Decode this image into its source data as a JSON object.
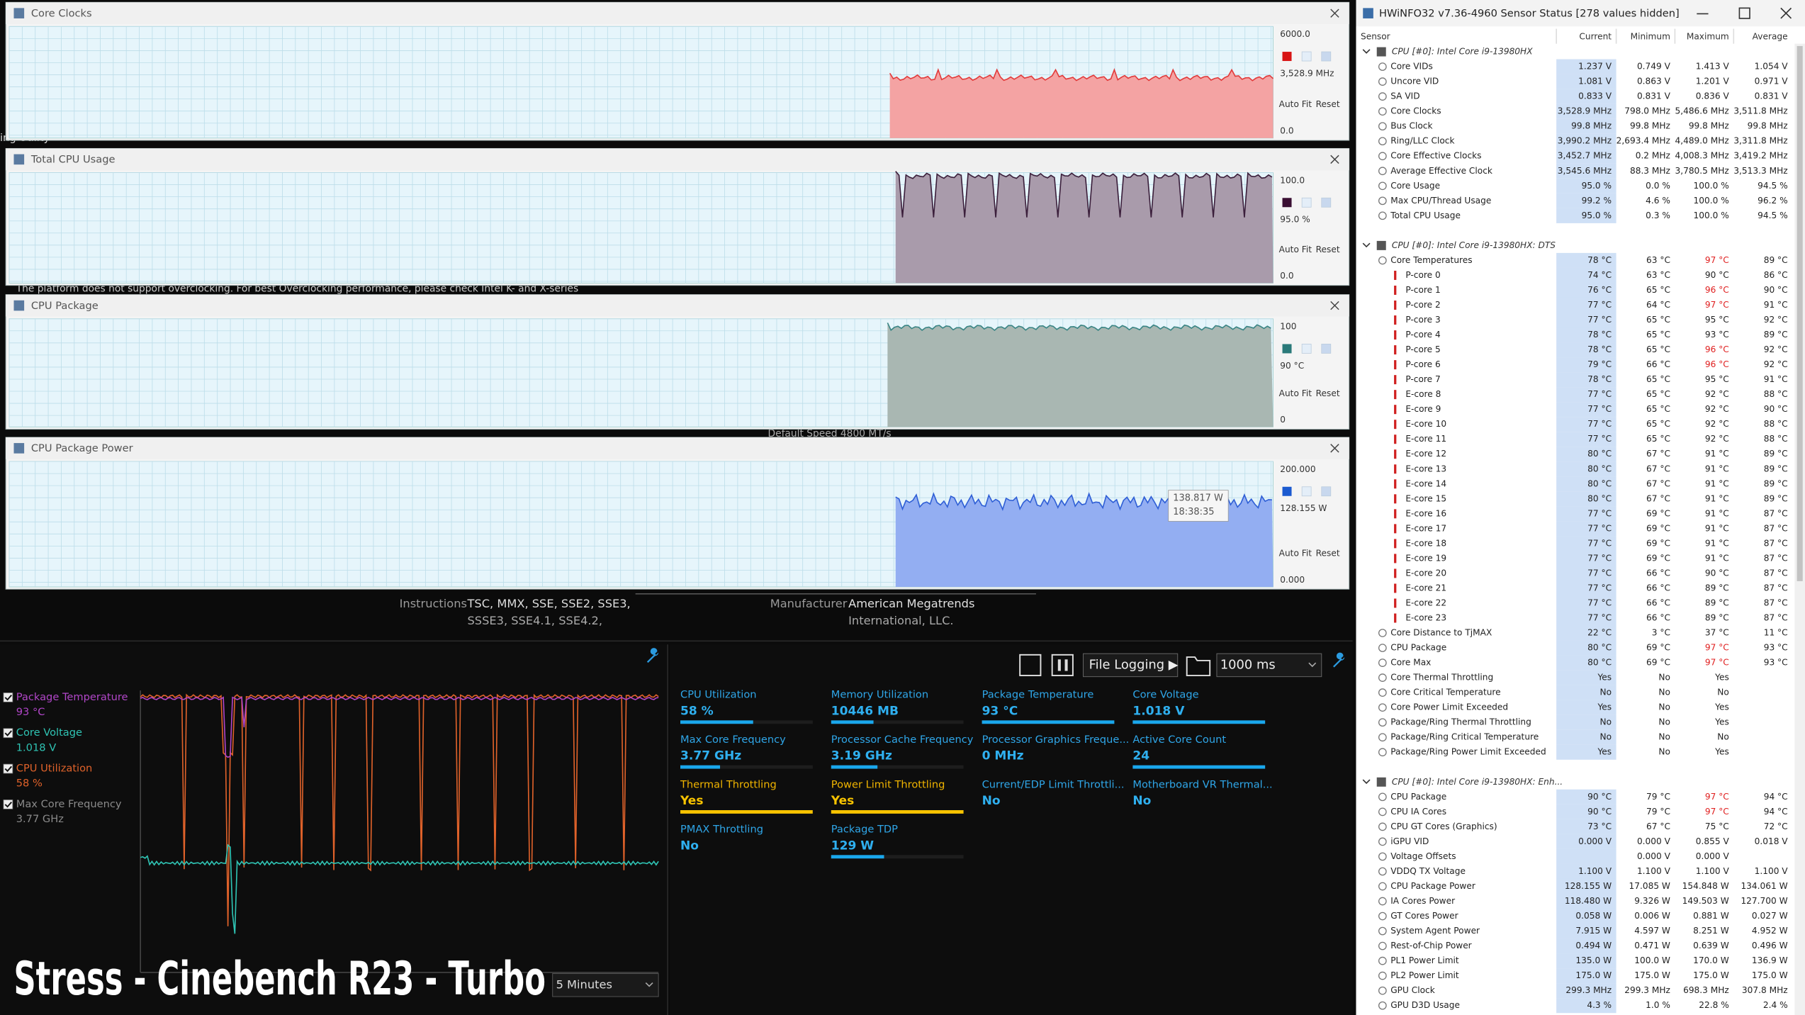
{
  "graph_windows": [
    {
      "title": "Core Clocks",
      "max_label": "6000.0",
      "current_label": "3,528.9 MHz",
      "min_label": "0.0"
    },
    {
      "title": "Total CPU Usage",
      "max_label": "100.0",
      "current_label": "95.0 %",
      "min_label": "0.0"
    },
    {
      "title": "CPU Package",
      "max_label": "100",
      "current_label": "90 °C",
      "min_label": "0"
    },
    {
      "title": "CPU Package Power",
      "max_label": "200.000",
      "current_label": "128.155 W",
      "min_label": "0.000",
      "tooltip": [
        "138.817 W",
        "18:38:35"
      ]
    }
  ],
  "graph_buttons": {
    "auto_fit": "Auto Fit",
    "reset": "Reset"
  },
  "background_texts": [
    "ing Utility",
    "The platform does not support overclocking. For best Overclocking performance, please check Intel K- and X-series",
    "Default Speed 4800 MT/s",
    "Instructions",
    "TSC, MMX, SSE, SSE2, SSE3,",
    "SSSE3, SSE4.1, SSE4.2,",
    "Manufacturer",
    "American Megatrends",
    "International, LLC."
  ],
  "monitor": {
    "legend": [
      {
        "name": "Package Temperature",
        "value": "93 °C",
        "color": "#b146c8"
      },
      {
        "name": "Core Voltage",
        "value": "1.018 V",
        "color": "#2fc4b4"
      },
      {
        "name": "CPU Utilization",
        "value": "58 %",
        "color": "#e0622a"
      },
      {
        "name": "Max Core Frequency",
        "value": "3.77 GHz",
        "color": "#8a8a8a"
      }
    ],
    "overlay": "Stress - Cinebench R23 - Turbo",
    "time_range": "5 Minutes"
  },
  "toolbar": {
    "file_logging": "File Logging ▶",
    "interval": "1000 ms"
  },
  "metrics": [
    {
      "label": "CPU Utilization",
      "value": "58 %"
    },
    {
      "label": "Memory Utilization",
      "value": "10446  MB"
    },
    {
      "label": "Package Temperature",
      "value": "93 °C"
    },
    {
      "label": "Core Voltage",
      "value": "1.018 V"
    },
    {
      "label": "Max Core Frequency",
      "value": "3.77 GHz"
    },
    {
      "label": "Processor Cache Frequency",
      "value": "3.19 GHz"
    },
    {
      "label": "Processor Graphics Freque...",
      "value": "0 MHz"
    },
    {
      "label": "Active Core Count",
      "value": "24"
    },
    {
      "label": "Thermal Throttling",
      "value": "Yes"
    },
    {
      "label": "Power Limit Throttling",
      "value": "Yes"
    },
    {
      "label": "Current/EDP Limit Throttli...",
      "value": "No"
    },
    {
      "label": "Motherboard VR Thermal...",
      "value": "No"
    },
    {
      "label": "PMAX Throttling",
      "value": "No"
    },
    {
      "label": "Package TDP",
      "value": "129 W"
    }
  ],
  "hwinfo": {
    "title": "HWiNFO32 v7.36-4960 Sensor Status [278 values hidden]",
    "columns": [
      "Sensor",
      "Current",
      "Minimum",
      "Maximum",
      "Average"
    ],
    "sections": [
      {
        "title": "CPU [#0]: Intel Core i9-13980HX",
        "rows": [
          [
            "Core VIDs",
            "1.237 V",
            "0.749 V",
            "1.413 V",
            "1.054 V"
          ],
          [
            "Uncore VID",
            "1.081 V",
            "0.863 V",
            "1.201 V",
            "0.971 V"
          ],
          [
            "SA VID",
            "0.833 V",
            "0.831 V",
            "0.836 V",
            "0.831 V"
          ],
          [
            "Core Clocks",
            "3,528.9 MHz",
            "798.0 MHz",
            "5,486.6 MHz",
            "3,511.8 MHz"
          ],
          [
            "Bus Clock",
            "99.8 MHz",
            "99.8 MHz",
            "99.8 MHz",
            "99.8 MHz"
          ],
          [
            "Ring/LLC Clock",
            "3,990.2 MHz",
            "2,693.4 MHz",
            "4,489.0 MHz",
            "3,311.8 MHz"
          ],
          [
            "Core Effective Clocks",
            "3,452.7 MHz",
            "0.2 MHz",
            "4,008.3 MHz",
            "3,419.2 MHz"
          ],
          [
            "Average Effective Clock",
            "3,545.6 MHz",
            "88.3 MHz",
            "3,780.5 MHz",
            "3,513.3 MHz"
          ],
          [
            "Core Usage",
            "95.0 %",
            "0.0 %",
            "100.0 %",
            "94.5 %"
          ],
          [
            "Max CPU/Thread Usage",
            "99.2 %",
            "4.6 %",
            "100.0 %",
            "96.2 %"
          ],
          [
            "Total CPU Usage",
            "95.0 %",
            "0.3 %",
            "100.0 %",
            "94.5 %"
          ]
        ]
      },
      {
        "title": "CPU [#0]: Intel Core i9-13980HX: DTS",
        "rows": [
          [
            "Core Temperatures",
            "78 °C",
            "63 °C",
            "97 °C",
            "89 °C"
          ],
          [
            "P-core 0",
            "74 °C",
            "63 °C",
            "90 °C",
            "86 °C"
          ],
          [
            "P-core 1",
            "76 °C",
            "65 °C",
            "96 °C",
            "90 °C"
          ],
          [
            "P-core 2",
            "77 °C",
            "64 °C",
            "97 °C",
            "91 °C"
          ],
          [
            "P-core 3",
            "77 °C",
            "65 °C",
            "95 °C",
            "92 °C"
          ],
          [
            "P-core 4",
            "78 °C",
            "65 °C",
            "93 °C",
            "89 °C"
          ],
          [
            "P-core 5",
            "78 °C",
            "65 °C",
            "96 °C",
            "92 °C"
          ],
          [
            "P-core 6",
            "79 °C",
            "66 °C",
            "96 °C",
            "92 °C"
          ],
          [
            "P-core 7",
            "78 °C",
            "65 °C",
            "95 °C",
            "91 °C"
          ],
          [
            "E-core 8",
            "77 °C",
            "65 °C",
            "92 °C",
            "88 °C"
          ],
          [
            "E-core 9",
            "77 °C",
            "65 °C",
            "92 °C",
            "90 °C"
          ],
          [
            "E-core 10",
            "77 °C",
            "65 °C",
            "92 °C",
            "88 °C"
          ],
          [
            "E-core 11",
            "77 °C",
            "65 °C",
            "92 °C",
            "88 °C"
          ],
          [
            "E-core 12",
            "80 °C",
            "67 °C",
            "91 °C",
            "89 °C"
          ],
          [
            "E-core 13",
            "80 °C",
            "67 °C",
            "91 °C",
            "89 °C"
          ],
          [
            "E-core 14",
            "80 °C",
            "67 °C",
            "91 °C",
            "89 °C"
          ],
          [
            "E-core 15",
            "80 °C",
            "67 °C",
            "91 °C",
            "89 °C"
          ],
          [
            "E-core 16",
            "77 °C",
            "69 °C",
            "91 °C",
            "87 °C"
          ],
          [
            "E-core 17",
            "77 °C",
            "69 °C",
            "91 °C",
            "87 °C"
          ],
          [
            "E-core 18",
            "77 °C",
            "69 °C",
            "91 °C",
            "87 °C"
          ],
          [
            "E-core 19",
            "77 °C",
            "69 °C",
            "91 °C",
            "87 °C"
          ],
          [
            "E-core 20",
            "77 °C",
            "66 °C",
            "90 °C",
            "87 °C"
          ],
          [
            "E-core 21",
            "77 °C",
            "66 °C",
            "89 °C",
            "87 °C"
          ],
          [
            "E-core 22",
            "77 °C",
            "66 °C",
            "89 °C",
            "87 °C"
          ],
          [
            "E-core 23",
            "77 °C",
            "66 °C",
            "89 °C",
            "87 °C"
          ],
          [
            "Core Distance to TjMAX",
            "22 °C",
            "3 °C",
            "37 °C",
            "11 °C"
          ],
          [
            "CPU Package",
            "80 °C",
            "69 °C",
            "97 °C",
            "93 °C"
          ],
          [
            "Core Max",
            "80 °C",
            "69 °C",
            "97 °C",
            "93 °C"
          ],
          [
            "Core Thermal Throttling",
            "Yes",
            "No",
            "Yes",
            null
          ],
          [
            "Core Critical Temperature",
            "No",
            "No",
            "No",
            null
          ],
          [
            "Core Power Limit Exceeded",
            "Yes",
            "No",
            "Yes",
            null
          ],
          [
            "Package/Ring Thermal Throttling",
            "No",
            "No",
            "Yes",
            null
          ],
          [
            "Package/Ring Critical Temperature",
            "No",
            "No",
            "No",
            null
          ],
          [
            "Package/Ring Power Limit Exceeded",
            "Yes",
            "No",
            "Yes",
            null
          ]
        ]
      },
      {
        "title": "CPU [#0]: Intel Core i9-13980HX: Enh...",
        "rows": [
          [
            "CPU Package",
            "90 °C",
            "79 °C",
            "97 °C",
            "94 °C"
          ],
          [
            "CPU IA Cores",
            "90 °C",
            "79 °C",
            "97 °C",
            "94 °C"
          ],
          [
            "CPU GT Cores (Graphics)",
            "73 °C",
            "67 °C",
            "75 °C",
            "72 °C"
          ],
          [
            "iGPU VID",
            "0.000 V",
            "0.000 V",
            "0.855 V",
            "0.018 V"
          ],
          [
            "Voltage Offsets",
            null,
            "0.000 V",
            "0.000 V",
            null
          ],
          [
            "VDDQ TX Voltage",
            "1.100 V",
            "1.100 V",
            "1.100 V",
            "1.100 V"
          ],
          [
            "CPU Package Power",
            "128.155 W",
            "17.085 W",
            "154.848 W",
            "134.061 W"
          ],
          [
            "IA Cores Power",
            "118.480 W",
            "9.326 W",
            "149.503 W",
            "127.700 W"
          ],
          [
            "GT Cores Power",
            "0.058 W",
            "0.006 W",
            "0.881 W",
            "0.027 W"
          ],
          [
            "System Agent Power",
            "7.915 W",
            "4.597 W",
            "8.251 W",
            "4.952 W"
          ],
          [
            "Rest-of-Chip Power",
            "0.494 W",
            "0.471 W",
            "0.639 W",
            "0.496 W"
          ],
          [
            "PL1 Power Limit",
            "135.0 W",
            "100.0 W",
            "170.0 W",
            "136.9 W"
          ],
          [
            "PL2 Power Limit",
            "175.0 W",
            "175.0 W",
            "175.0 W",
            "175.0 W"
          ],
          [
            "GPU Clock",
            "299.3 MHz",
            "299.3 MHz",
            "698.3 MHz",
            "307.8 MHz"
          ],
          [
            "GPU D3D Usage",
            "4.3 %",
            "1.0 %",
            "22.8 %",
            "2.4 %"
          ]
        ]
      }
    ]
  }
}
